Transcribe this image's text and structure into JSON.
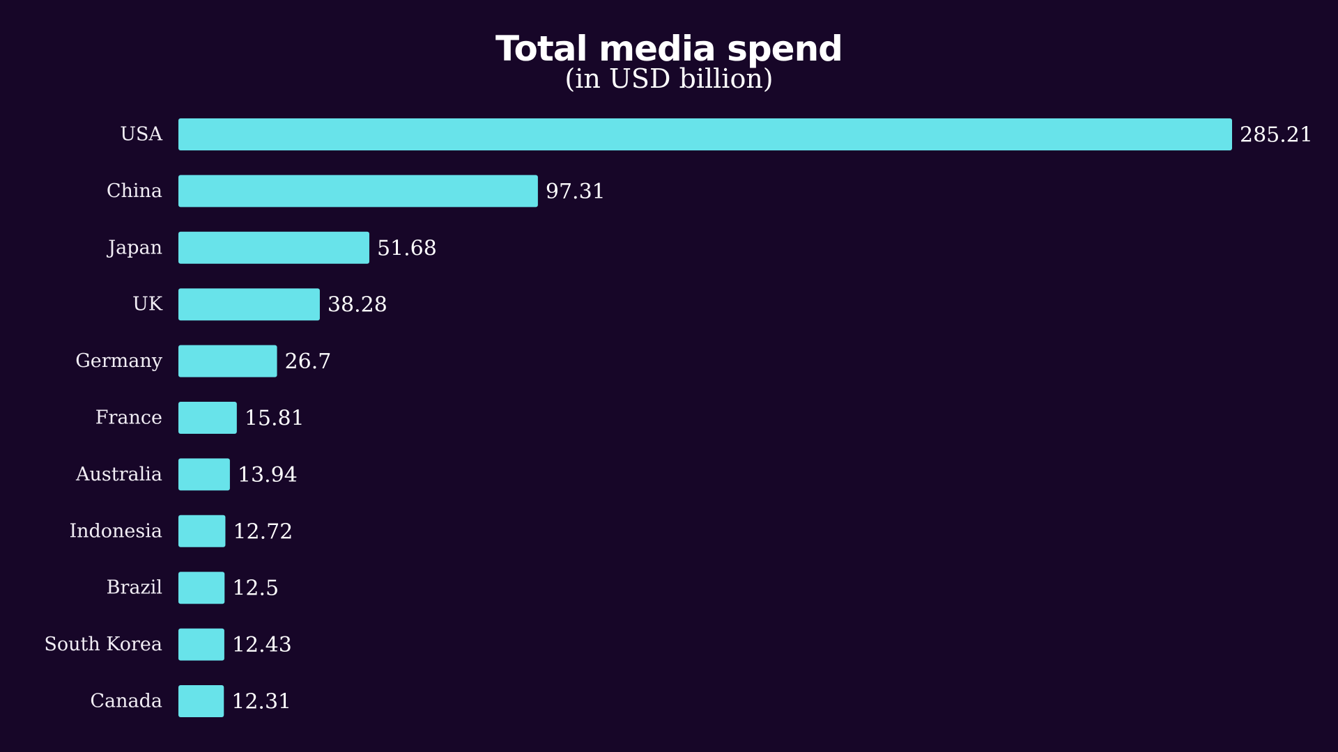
{
  "chart_data": {
    "type": "bar",
    "orientation": "horizontal",
    "title": "Total media spend",
    "subtitle": "(in USD billion)",
    "categories": [
      "USA",
      "China",
      "Japan",
      "UK",
      "Germany",
      "France",
      "Australia",
      "Indonesia",
      "Brazil",
      "South Korea",
      "Canada"
    ],
    "values": [
      285.21,
      97.31,
      51.68,
      38.28,
      26.7,
      15.81,
      13.94,
      12.72,
      12.5,
      12.43,
      12.31
    ],
    "value_labels": [
      "285.21",
      "97.31",
      "51.68",
      "38.28",
      "26.7",
      "15.81",
      "13.94",
      "12.72",
      "12.5",
      "12.43",
      "12.31"
    ],
    "xlim": [
      0,
      285.21
    ],
    "xlabel": "",
    "ylabel": "",
    "grid": false,
    "legend": "none",
    "colors": {
      "background": "#170628",
      "bar": "#68e3ea",
      "text": "#ffffff",
      "category_text": "#f2eef5"
    }
  }
}
